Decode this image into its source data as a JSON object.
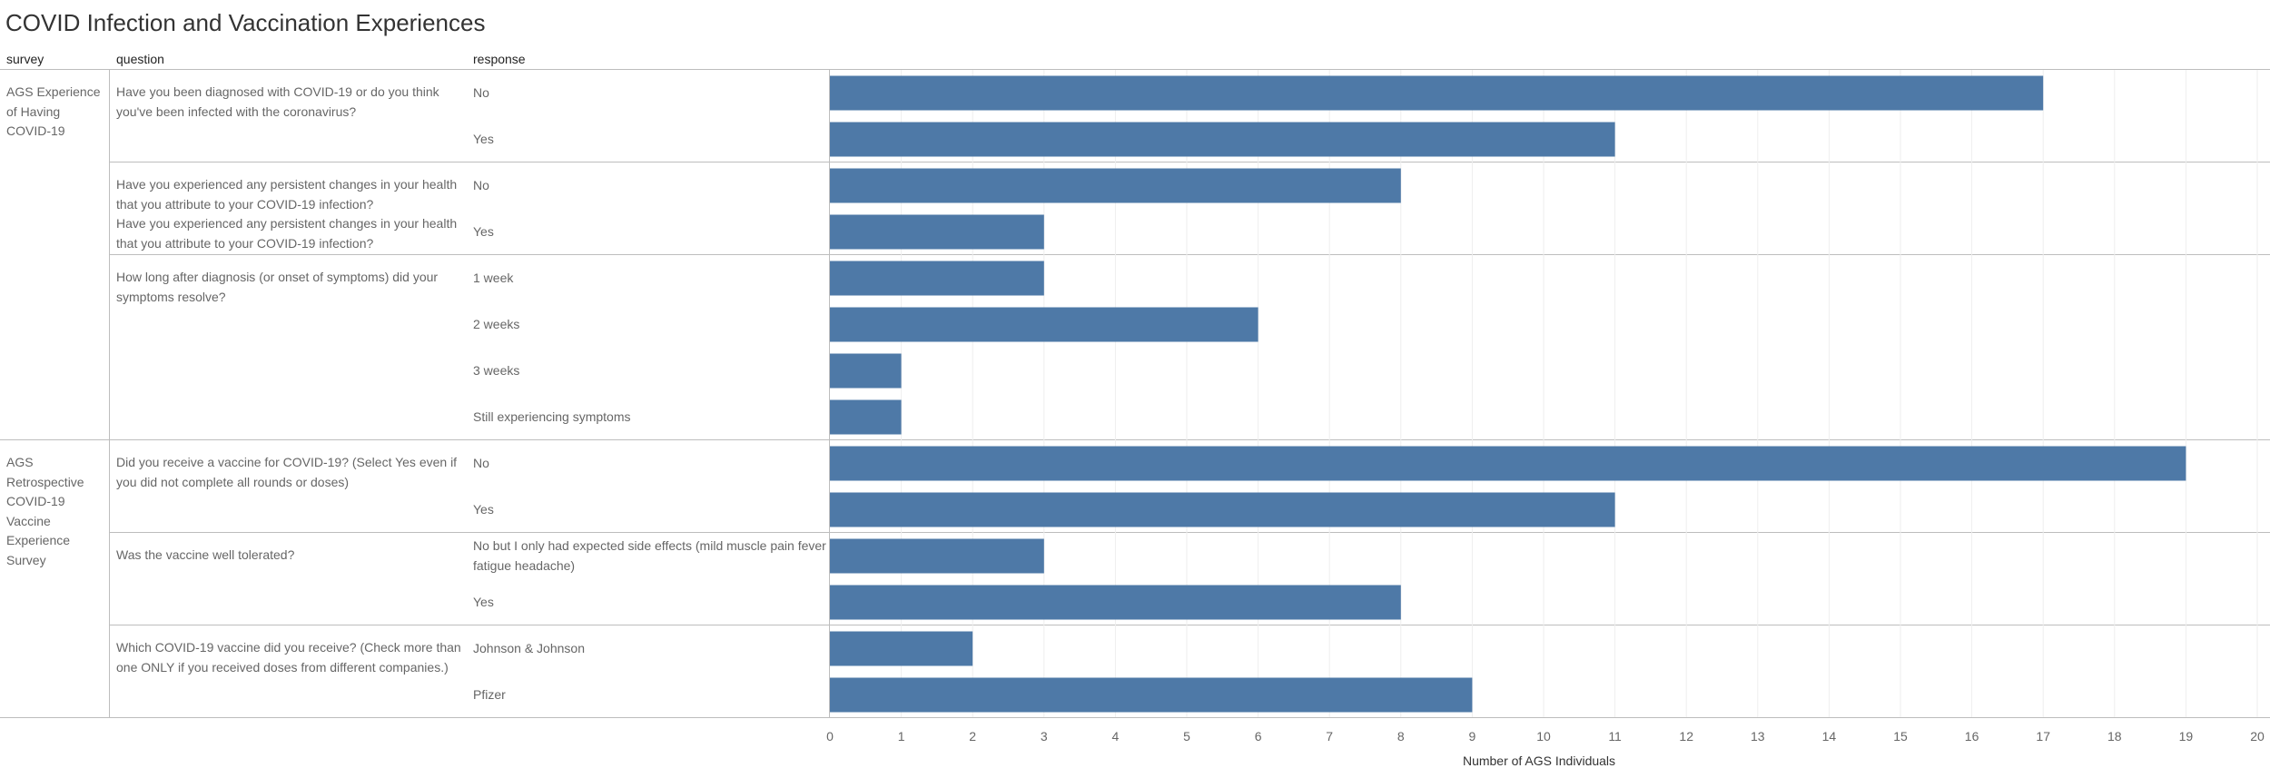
{
  "title": "COVID Infection and Vaccination Experiences",
  "headers": {
    "survey": "survey",
    "question": "question",
    "response": "response"
  },
  "surveys": [
    {
      "name": "AGS Experience of Having COVID-19"
    },
    {
      "name": "AGS Retrospective COVID-19 Vaccine Experience Survey"
    }
  ],
  "questions": [
    {
      "text": "Have you been diagnosed with COVID-19 or do you think you've been infected with the coronavirus?"
    },
    {
      "text": "Have you experienced any persistent changes in your health that you attribute to your COVID-19 infection?"
    },
    {
      "text": "Have you experienced any persistent changes in your health that you attribute to your COVID-19 infection?"
    },
    {
      "text": "How long after diagnosis (or onset of symptoms) did your symptoms resolve?"
    },
    {
      "text": "Did you receive a vaccine for COVID-19? (Select Yes even if you did not complete all rounds or doses)"
    },
    {
      "text": "Was the vaccine well tolerated?"
    },
    {
      "text": "Which COVID-19 vaccine did you receive? (Check more than one ONLY if you received doses from different companies.)"
    }
  ],
  "chart_data": {
    "type": "bar",
    "orientation": "horizontal",
    "title": "COVID Infection and Vaccination Experiences",
    "xlabel": "Number of AGS Individuals",
    "xlim": [
      0,
      20
    ],
    "xticks": [
      "0",
      "1",
      "2",
      "3",
      "4",
      "5",
      "6",
      "7",
      "8",
      "9",
      "10",
      "11",
      "12",
      "13",
      "14",
      "15",
      "16",
      "17",
      "18",
      "19",
      "20"
    ],
    "grid": "vertical",
    "bar_color": "#4e79a7",
    "categories": [
      "No",
      "Yes",
      "No",
      "Yes",
      "1 week",
      "2 weeks",
      "3 weeks",
      "Still experiencing symptoms",
      "No",
      "Yes",
      "No  but I only had expected side effects (mild muscle pain  fever  fatigue  headache)",
      "Yes",
      "Johnson & Johnson",
      "Pfizer"
    ],
    "values": [
      17,
      11,
      8,
      3,
      3,
      6,
      1,
      1,
      19,
      11,
      3,
      8,
      2,
      9
    ]
  }
}
